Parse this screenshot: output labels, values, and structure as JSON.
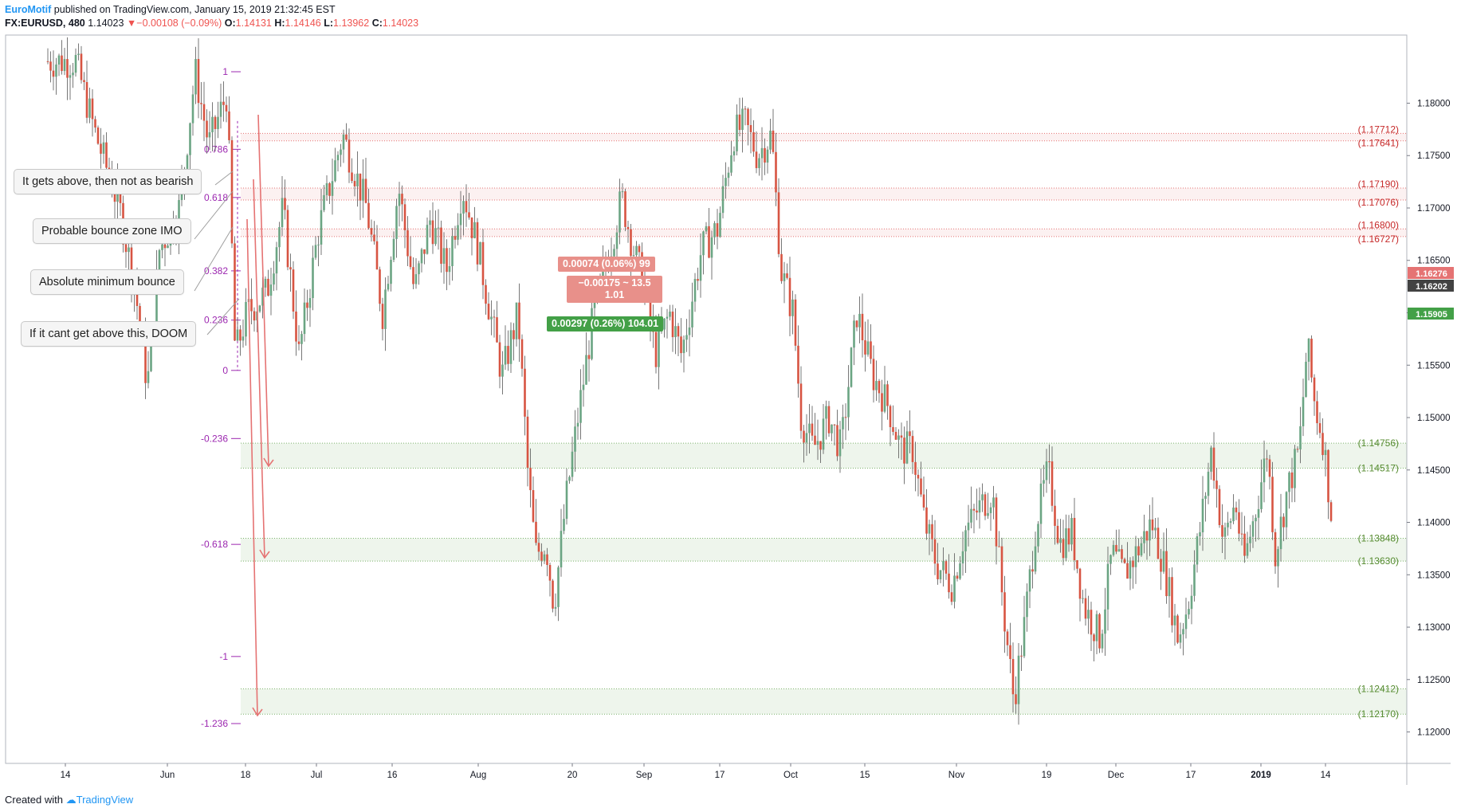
{
  "header": {
    "author": "EuroMotif",
    "published": " published on TradingView.com, January 15, 2019 21:32:45 EST",
    "symbol": "FX:EURUSD, 480",
    "last": "1.14023",
    "change": "−0.00108 (−0.09%)",
    "o_label": "O:",
    "o": "1.14131",
    "h_label": "H:",
    "h": "1.14146",
    "l_label": "L:",
    "l": "1.13962",
    "c_label": "C:",
    "c": "1.14023"
  },
  "footer": {
    "created": "Created with",
    "brand": "TradingView"
  },
  "notes": [
    {
      "text": "It gets above, then not as bearish"
    },
    {
      "text": "Probable bounce zone IMO"
    },
    {
      "text": "Absolute minimum bounce"
    },
    {
      "text": "If it cant get above this, DOOM"
    }
  ],
  "measure_labels": [
    {
      "text": "0.00074 (0.06%) 99",
      "color": "#e57373"
    },
    {
      "text": "−0.00175 ~ 13.5\n1.01",
      "color": "#e57373"
    },
    {
      "text": "0.00297 (0.26%) 104.01",
      "color": "#43a047"
    }
  ],
  "chart_data": {
    "type": "candlestick",
    "symbol": "FX:EURUSD",
    "timeframe": "480",
    "ylim": [
      1.117,
      1.1865
    ],
    "y_ticks": [
      1.12,
      1.125,
      1.13,
      1.135,
      1.14,
      1.145,
      1.15,
      1.155,
      1.16,
      1.165,
      1.17,
      1.175,
      1.18
    ],
    "x_ticks": [
      "14",
      "Jun",
      "18",
      "Jul",
      "16",
      "Aug",
      "20",
      "Sep",
      "17",
      "Oct",
      "15",
      "Nov",
      "19",
      "Dec",
      "17",
      "2019",
      "14"
    ],
    "price_tags": [
      {
        "value": "1.16276",
        "color": "#e57373"
      },
      {
        "value": "1.16202",
        "color": "#424242"
      },
      {
        "value": "1.15905",
        "color": "#43a047"
      }
    ],
    "resistance_zones": [
      {
        "top": 1.17712,
        "bottom": 1.17641,
        "top_label": "(1.17712)",
        "bottom_label": "(1.17641)"
      },
      {
        "top": 1.1719,
        "bottom": 1.17076,
        "top_label": "(1.17190)",
        "bottom_label": "(1.17076)"
      },
      {
        "top": 1.168,
        "bottom": 1.16727,
        "top_label": "(1.16800)",
        "bottom_label": "(1.16727)"
      }
    ],
    "support_zones": [
      {
        "top": 1.14756,
        "bottom": 1.14517,
        "top_label": "(1.14756)",
        "bottom_label": "(1.14517)"
      },
      {
        "top": 1.13848,
        "bottom": 1.1363,
        "top_label": "(1.13848)",
        "bottom_label": "(1.13630)"
      },
      {
        "top": 1.12412,
        "bottom": 1.1217,
        "top_label": "(1.12412)",
        "bottom_label": "(1.12170)"
      }
    ],
    "fib_levels": [
      {
        "label": "1",
        "value": 1.183
      },
      {
        "label": "0.786",
        "value": 1.1756
      },
      {
        "label": "0.618",
        "value": 1.171
      },
      {
        "label": "0.382",
        "value": 1.164
      },
      {
        "label": "0.236",
        "value": 1.1593
      },
      {
        "label": "0",
        "value": 1.1545
      },
      {
        "label": "-0.236",
        "value": 1.148
      },
      {
        "label": "-0.618",
        "value": 1.1379
      },
      {
        "label": "-1",
        "value": 1.1272
      },
      {
        "label": "-1.236",
        "value": 1.1208
      }
    ],
    "colors": {
      "up": "#6ba583",
      "down": "#d75442",
      "resistance": "#e57373",
      "support": "#7cb36b",
      "fib": "#9c27b0"
    }
  }
}
